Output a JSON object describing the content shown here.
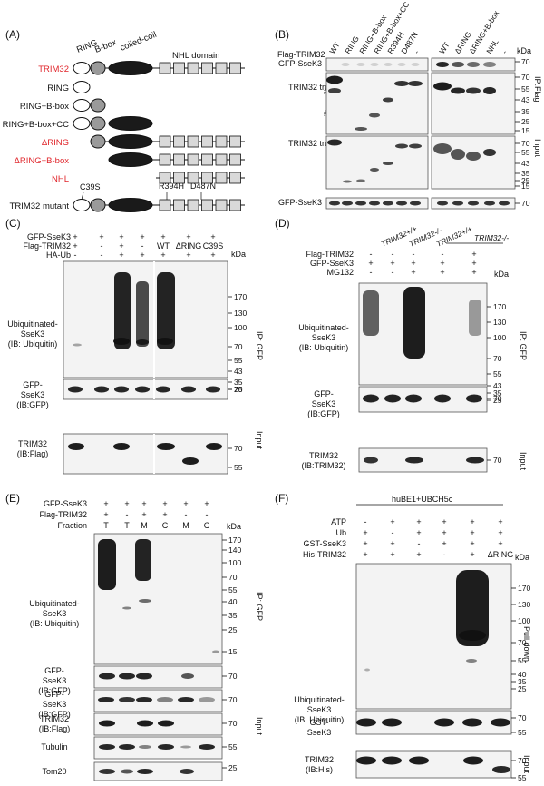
{
  "figure": {
    "panels": [
      "(A)",
      "(B)",
      "(C)",
      "(D)",
      "(E)",
      "(F)"
    ]
  },
  "panelA": {
    "domains": [
      "RING",
      "B-box",
      "coiled-coil",
      "NHL domain"
    ],
    "constructs": [
      {
        "label": "TRIM32",
        "color": "#e0242a"
      },
      {
        "label": "RING",
        "color": "#111111"
      },
      {
        "label": "RING+B-box",
        "color": "#111111"
      },
      {
        "label": "RING+B-box+CC",
        "color": "#111111"
      },
      {
        "label": "ΔRING",
        "color": "#e0242a"
      },
      {
        "label": "ΔRING+B-box",
        "color": "#e0242a"
      },
      {
        "label": "NHL",
        "color": "#e0242a"
      },
      {
        "label": "TRIM32 mutant",
        "color": "#111111"
      }
    ],
    "mutations": [
      "C39S",
      "R394H",
      "D487N"
    ]
  },
  "panelB": {
    "row_flag": "Flag-TRIM32",
    "lanes_left": [
      "WT",
      "RING",
      "RING+B-box",
      "RING+B-box+CC",
      "R394H",
      "D487N",
      "-"
    ],
    "lanes_right": [
      "WT",
      "ΔRING",
      "ΔRING+B-box",
      "NHL",
      "-"
    ],
    "kda": "kDa",
    "row_labels": [
      "GFP-SseK3",
      "TRIM32 truncations (IB:Flag)",
      "TRIM32 truncations (IB:Flag)",
      "GFP-SseK3"
    ],
    "hash": "#",
    "mw_top": [
      "70",
      "70",
      "55",
      "43",
      "35",
      "25",
      "15"
    ],
    "mw_input": [
      "70",
      "55",
      "43",
      "35",
      "25",
      "15"
    ],
    "mw_bottom": [
      "70"
    ],
    "side_ip": "IP:Flag",
    "side_input": "Input"
  },
  "panelC": {
    "rows": [
      {
        "label": "GFP-SseK3",
        "vals": [
          "+",
          "+",
          "+",
          "+",
          "+",
          "+",
          "+"
        ]
      },
      {
        "label": "Flag-TRIM32",
        "vals": [
          "+",
          "-",
          "+",
          "-",
          "WT",
          "ΔRING",
          "C39S"
        ]
      },
      {
        "label": "HA-Ub",
        "vals": [
          "-",
          "-",
          "+",
          "+",
          "+",
          "+",
          "+"
        ]
      }
    ],
    "kda": "kDa",
    "blot_labels": [
      "Ubiquitinated-SseK3 (IB: Ubiquitin)",
      "GFP-SseK3 (IB:GFP)",
      "TRIM32 (IB:Flag)"
    ],
    "mw_main": [
      "170",
      "130",
      "100",
      "70",
      "55",
      "43",
      "35",
      "25"
    ],
    "mw_gfp": [
      "70"
    ],
    "mw_trim": [
      "70",
      "55"
    ],
    "side_ip": "IP: GFP",
    "side_input": "Input"
  },
  "panelD": {
    "genotypes": [
      "TRIM32+/+",
      "TRIM32-/-",
      "TRIM32+/+",
      "TRIM32-/-"
    ],
    "rows": [
      {
        "label": "Flag-TRIM32",
        "vals": [
          "-",
          "-",
          "-",
          "-",
          "+"
        ]
      },
      {
        "label": "GFP-SseK3",
        "vals": [
          "+",
          "+",
          "+",
          "+",
          "+"
        ]
      },
      {
        "label": "MG132",
        "vals": [
          "-",
          "-",
          "+",
          "+",
          "+"
        ]
      }
    ],
    "kda": "kDa",
    "blot_labels": [
      "Ubiquitinated-SseK3 (IB: Ubiquitin)",
      "GFP-SseK3 (IB:GFP)",
      "TRIM32 (IB:TRIM32)"
    ],
    "mw_main": [
      "170",
      "130",
      "100",
      "70",
      "55",
      "43",
      "35",
      "25"
    ],
    "mw_gfp": [
      "70"
    ],
    "mw_trim": [
      "70"
    ],
    "side_ip": "IP: GFP",
    "side_input": "Input"
  },
  "panelE": {
    "rows": [
      {
        "label": "GFP-SseK3",
        "vals": [
          "+",
          "+",
          "+",
          "+",
          "+",
          "+"
        ]
      },
      {
        "label": "Flag-TRIM32",
        "vals": [
          "+",
          "-",
          "+",
          "+",
          "-",
          "-"
        ]
      },
      {
        "label": "Fraction",
        "vals": [
          "T",
          "T",
          "M",
          "C",
          "M",
          "C"
        ]
      }
    ],
    "kda": "kDa",
    "blot_labels": [
      "Ubiquitinated-SseK3 (IB: Ubiquitin)",
      "GFP-SseK3 (IB:GFP)",
      "GFP-SseK3 (IB:GFP)",
      "TRIM32 (IB:Flag)",
      "Tubulin",
      "Tom20"
    ],
    "mw_main": [
      "170",
      "140",
      "100",
      "70",
      "55",
      "40",
      "35",
      "25",
      "15"
    ],
    "mw_gfp": [
      "70"
    ],
    "mw_gfp2": [
      "70"
    ],
    "mw_trim": [
      "70"
    ],
    "mw_tub": [
      "55"
    ],
    "mw_tom": [
      "25"
    ],
    "side_ip": "IP: GFP",
    "side_input": "Input"
  },
  "panelF": {
    "header": "huBE1+UBCH5c",
    "rows": [
      {
        "label": "ATP",
        "vals": [
          "-",
          "+",
          "+",
          "+",
          "+",
          "+"
        ]
      },
      {
        "label": "Ub",
        "vals": [
          "+",
          "-",
          "+",
          "+",
          "+",
          "+"
        ]
      },
      {
        "label": "GST-SseK3",
        "vals": [
          "+",
          "+",
          "-",
          "+",
          "+",
          "+"
        ]
      },
      {
        "label": "His-TRIM32",
        "vals": [
          "+",
          "+",
          "+",
          "-",
          "+",
          "ΔRING"
        ]
      }
    ],
    "kda": "kDa",
    "blot_labels": [
      "Ubiquitinated-SseK3 (IB: Ubiquitin)",
      "GST-SseK3",
      "TRIM32 (IB:His)"
    ],
    "mw_main": [
      "170",
      "130",
      "100",
      "70",
      "55",
      "40",
      "35",
      "25"
    ],
    "mw_gst": [
      "70",
      "55"
    ],
    "mw_trim": [
      "70",
      "55"
    ],
    "side_ip": "Pull down",
    "side_input": "Input"
  }
}
